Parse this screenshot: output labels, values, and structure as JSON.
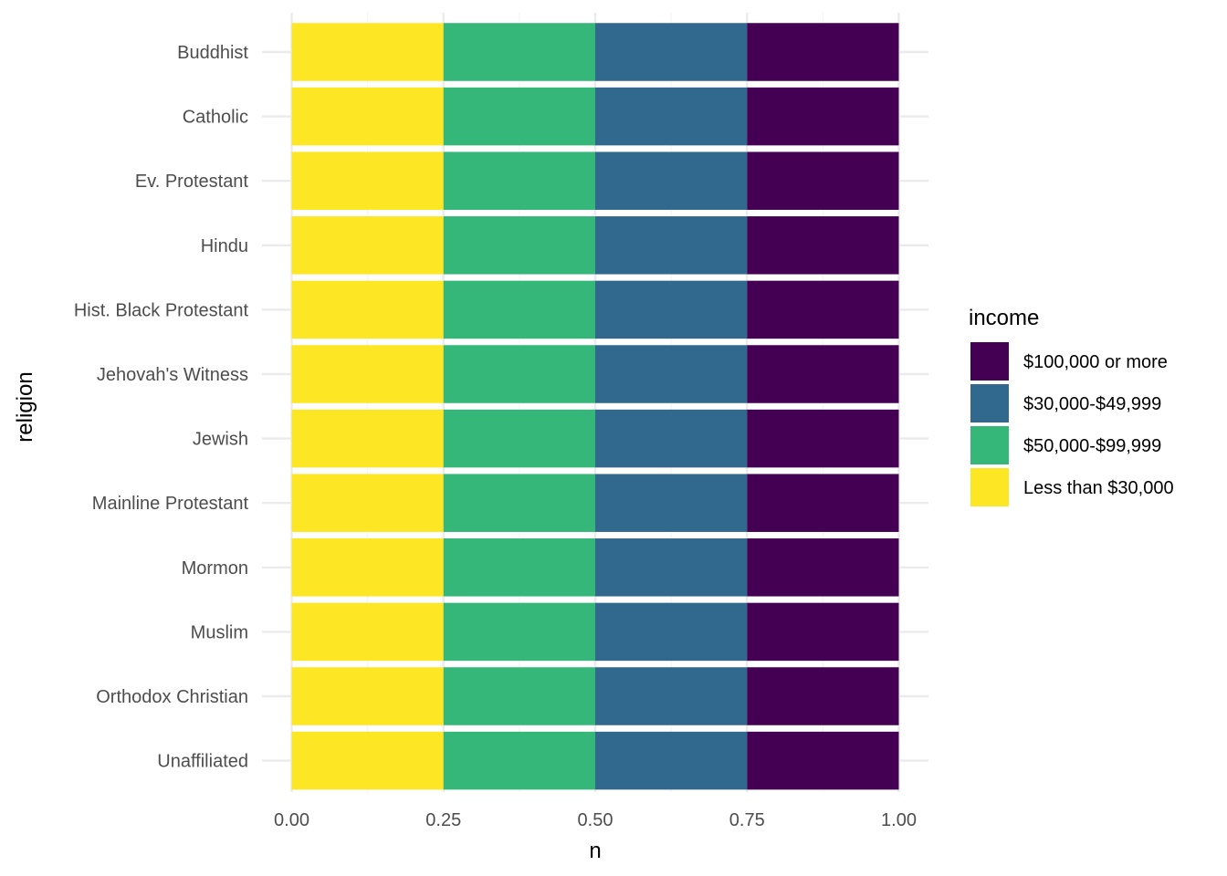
{
  "chart_data": {
    "type": "bar",
    "orientation": "horizontal",
    "stacked": true,
    "position": "fill",
    "xlabel": "n",
    "ylabel": "religion",
    "xlim": [
      0,
      1
    ],
    "x_ticks": [
      "0.00",
      "0.25",
      "0.50",
      "0.75",
      "1.00"
    ],
    "categories": [
      "Buddhist",
      "Catholic",
      "Ev. Protestant",
      "Hindu",
      "Hist. Black Protestant",
      "Jehovah's Witness",
      "Jewish",
      "Mainline Protestant",
      "Mormon",
      "Muslim",
      "Orthodox Christian",
      "Unaffiliated"
    ],
    "series": [
      {
        "name": "Less than $30,000",
        "color": "#FDE725",
        "values": [
          0.25,
          0.25,
          0.25,
          0.25,
          0.25,
          0.25,
          0.25,
          0.25,
          0.25,
          0.25,
          0.25,
          0.25
        ]
      },
      {
        "name": "$50,000-$99,999",
        "color": "#35B779",
        "values": [
          0.25,
          0.25,
          0.25,
          0.25,
          0.25,
          0.25,
          0.25,
          0.25,
          0.25,
          0.25,
          0.25,
          0.25
        ]
      },
      {
        "name": "$30,000-$49,999",
        "color": "#31688E",
        "values": [
          0.25,
          0.25,
          0.25,
          0.25,
          0.25,
          0.25,
          0.25,
          0.25,
          0.25,
          0.25,
          0.25,
          0.25
        ]
      },
      {
        "name": "$100,000 or more",
        "color": "#440154",
        "values": [
          0.25,
          0.25,
          0.25,
          0.25,
          0.25,
          0.25,
          0.25,
          0.25,
          0.25,
          0.25,
          0.25,
          0.25
        ]
      }
    ],
    "legend": {
      "title": "income",
      "position": "right",
      "entries": [
        "$100,000 or more",
        "$30,000-$49,999",
        "$50,000-$99,999",
        "Less than $30,000"
      ]
    },
    "grid": true,
    "colors": {
      "grid_major": "#EBEBEB",
      "grid_minor": "#F5F5F5",
      "tick_text": "#4D4D4D"
    }
  }
}
